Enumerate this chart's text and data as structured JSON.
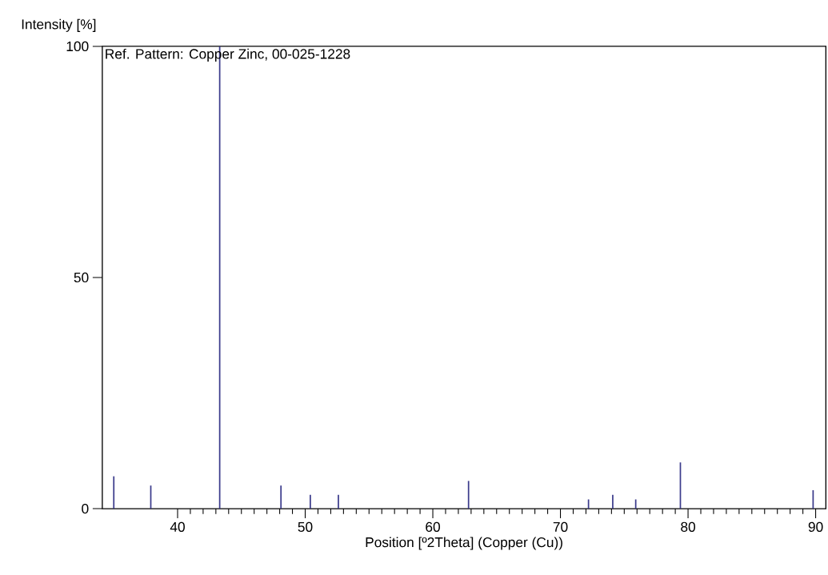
{
  "chart_data": {
    "type": "bar",
    "xlabel": "Position [º2Theta] (Copper (Cu))",
    "ylabel": "Intensity [%]",
    "annotations": [
      "Ref. Pattern: Copper Zinc, 00-025-1228"
    ],
    "x": [
      35.0,
      37.9,
      43.3,
      48.1,
      50.4,
      52.6,
      62.8,
      72.2,
      74.1,
      75.9,
      79.4,
      89.8
    ],
    "values": [
      7,
      5,
      100,
      5,
      3,
      3,
      6,
      2,
      3,
      2,
      10,
      4
    ],
    "color": "#3c3c8c",
    "xlim": [
      34.1,
      90.8
    ],
    "ylim": [
      0,
      100
    ],
    "xticks": [
      40,
      50,
      60,
      70,
      80,
      90
    ],
    "yticks": [
      0,
      50,
      100
    ],
    "grid": false
  }
}
